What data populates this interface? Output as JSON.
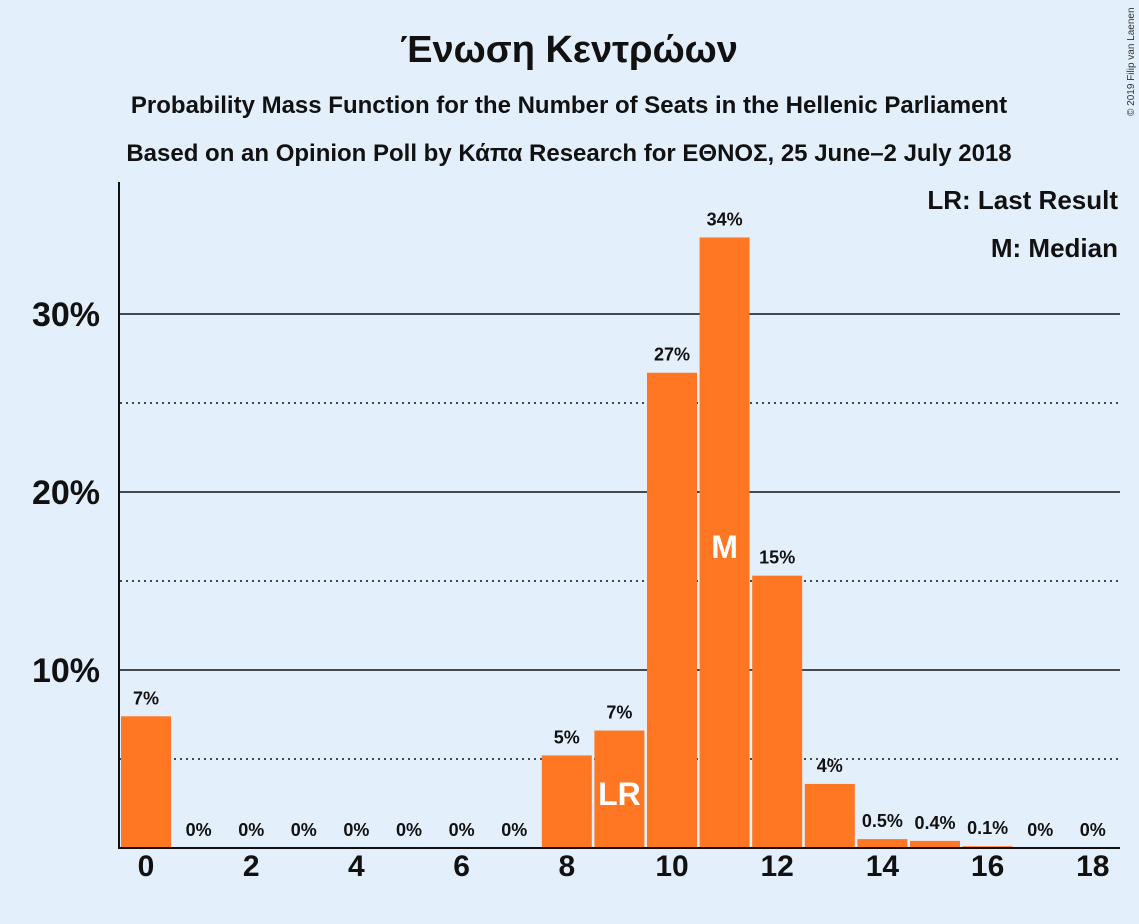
{
  "chart_data": {
    "type": "bar",
    "title": "Ένωση Κεντρώων",
    "subtitle_lines": [
      "Probability Mass Function for the Number of Seats in the Hellenic Parliament",
      "Based on an Opinion Poll by Κάπα Research for ΕΘΝΟΣ, 25 June–2 July 2018"
    ],
    "categories": [
      0,
      1,
      2,
      3,
      4,
      5,
      6,
      7,
      8,
      9,
      10,
      11,
      12,
      13,
      14,
      15,
      16,
      17,
      18
    ],
    "values": [
      7.4,
      0,
      0,
      0,
      0,
      0,
      0,
      0,
      5.2,
      6.6,
      26.7,
      34.3,
      15.3,
      3.6,
      0.5,
      0.4,
      0.1,
      0,
      0
    ],
    "data_labels": [
      "7%",
      "0%",
      "0%",
      "0%",
      "0%",
      "0%",
      "0%",
      "0%",
      "5%",
      "7%",
      "27%",
      "34%",
      "15%",
      "4%",
      "0.5%",
      "0.4%",
      "0.1%",
      "0%",
      "0%"
    ],
    "x_tick_labels": [
      "0",
      "2",
      "4",
      "6",
      "8",
      "10",
      "12",
      "14",
      "16",
      "18"
    ],
    "y_ticks": [
      10,
      20,
      30
    ],
    "y_tick_labels": [
      "10%",
      "20%",
      "30%"
    ],
    "y_minor_ticks": [
      5,
      15,
      25
    ],
    "ylim": [
      0,
      37.5
    ],
    "grid": "solid at 10% steps, dotted at 5% offsets",
    "bar_color": "#ff7722",
    "last_result_seat": 9,
    "median_seat": 11,
    "last_result_marker": "LR",
    "median_marker": "M",
    "legend": [
      "LR: Last Result",
      "M: Median"
    ],
    "legend_position": "top-right",
    "copyright": "© 2019 Filip van Laenen"
  }
}
